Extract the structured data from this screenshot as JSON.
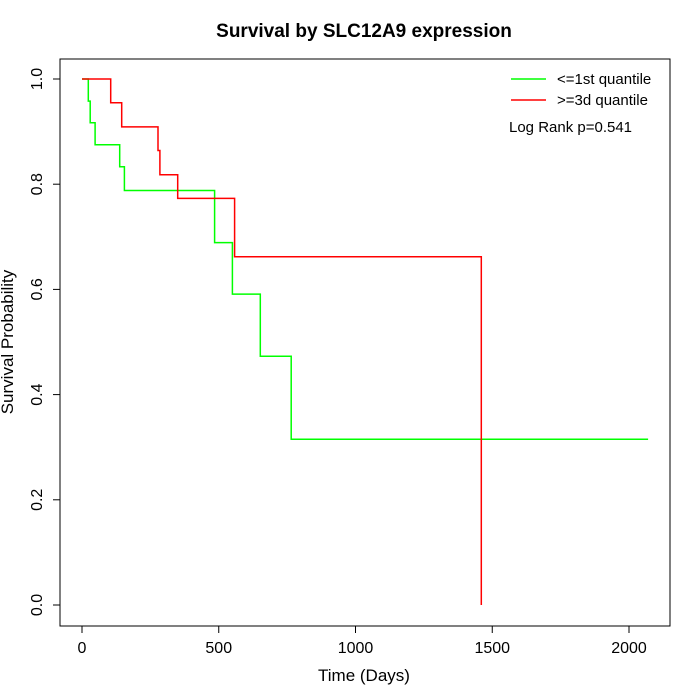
{
  "chart_data": {
    "type": "line",
    "title": "Survival by SLC12A9 expression",
    "xlabel": "Time (Days)",
    "ylabel": "Survival Probability",
    "xlim": [
      0,
      2070
    ],
    "ylim": [
      0,
      1
    ],
    "x_ticks": [
      0,
      500,
      1000,
      1500,
      2000
    ],
    "y_ticks": [
      0.0,
      0.2,
      0.4,
      0.6,
      0.8,
      1.0
    ],
    "x_tick_labels": [
      "0",
      "500",
      "1000",
      "1500",
      "2000"
    ],
    "y_tick_labels": [
      "0.0",
      "0.2",
      "0.4",
      "0.6",
      "0.8",
      "1.0"
    ],
    "grid": false,
    "legend_position": "top-right",
    "annotation": "Log Rank p=0.541",
    "series": [
      {
        "name": "<=1st quantile",
        "color": "#00ff00",
        "steps": [
          [
            0,
            1.0
          ],
          [
            23,
            1.0
          ],
          [
            23,
            0.958
          ],
          [
            30,
            0.958
          ],
          [
            30,
            0.917
          ],
          [
            48,
            0.917
          ],
          [
            48,
            0.875
          ],
          [
            138,
            0.875
          ],
          [
            138,
            0.833
          ],
          [
            155,
            0.833
          ],
          [
            155,
            0.788
          ],
          [
            485,
            0.788
          ],
          [
            485,
            0.689
          ],
          [
            550,
            0.689
          ],
          [
            550,
            0.591
          ],
          [
            652,
            0.591
          ],
          [
            652,
            0.473
          ],
          [
            765,
            0.473
          ],
          [
            765,
            0.315
          ],
          [
            2070,
            0.315
          ]
        ]
      },
      {
        "name": ">=3d quantile",
        "color": "#ff0000",
        "steps": [
          [
            0,
            1.0
          ],
          [
            105,
            1.0
          ],
          [
            105,
            0.955
          ],
          [
            145,
            0.955
          ],
          [
            145,
            0.909
          ],
          [
            278,
            0.909
          ],
          [
            278,
            0.864
          ],
          [
            285,
            0.864
          ],
          [
            285,
            0.818
          ],
          [
            350,
            0.818
          ],
          [
            350,
            0.773
          ],
          [
            558,
            0.773
          ],
          [
            558,
            0.662
          ],
          [
            1460,
            0.662
          ],
          [
            1460,
            0.0
          ]
        ]
      }
    ]
  }
}
